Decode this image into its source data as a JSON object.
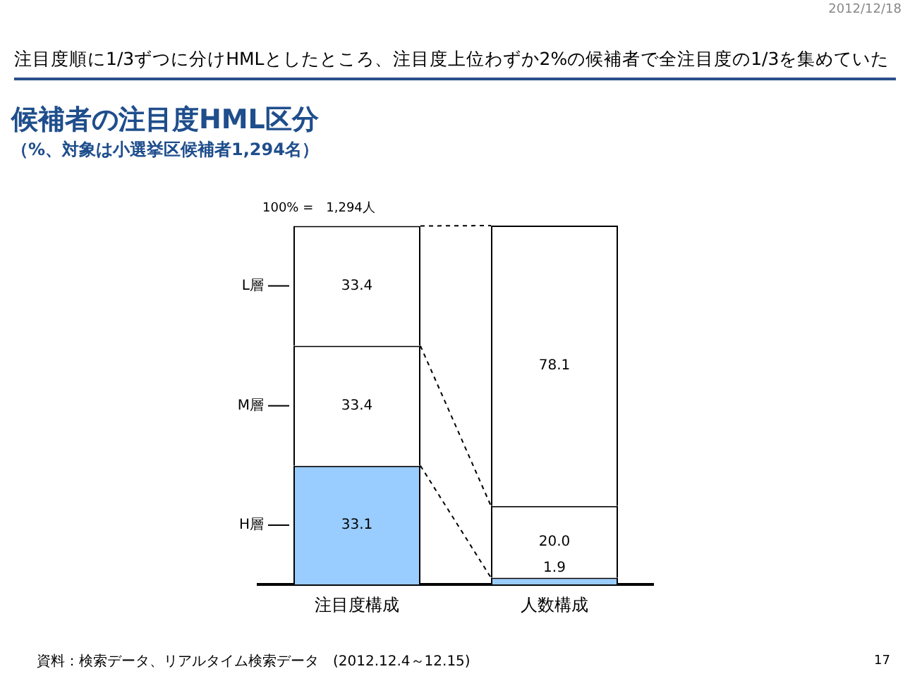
{
  "chart_data": {
    "type": "bar",
    "title": "候補者の注目度HML区分",
    "subtitle": "（%、対象は小選挙区候補者1,294名）",
    "annotations": [
      "2012/12/18",
      "注目度順に1/3ずつに分けHMLとしたところ、注目度上位わずか2%の候補者で全注目度の1/3を集めていた",
      "100% =　1,294人",
      "資料：検索データ、リアルタイム検索データ　(2012.12.4～12.15)",
      "17"
    ],
    "categories": [
      "注目度構成",
      "人数構成"
    ],
    "stacked": true,
    "legend": false,
    "grid": false,
    "series": [
      {
        "name": "H層",
        "color": "#99ccff",
        "values": [
          33.1,
          1.9
        ],
        "value_labels": [
          "33.1",
          "1.9"
        ]
      },
      {
        "name": "M層",
        "color": "#ffffff",
        "values": [
          33.4,
          20.0
        ],
        "value_labels": [
          "33.4",
          "20.0"
        ]
      },
      {
        "name": "L層",
        "color": "#ffffff",
        "values": [
          33.4,
          78.1
        ],
        "value_labels": [
          "33.4",
          "78.1"
        ]
      }
    ]
  }
}
